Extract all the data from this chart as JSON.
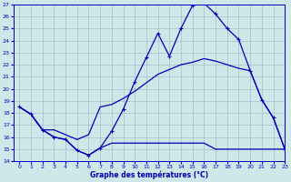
{
  "bg_color": "#cce8e8",
  "grid_color": "#aabccc",
  "line_color": "#0000bb",
  "xlabel": "Graphe des températures (°C)",
  "ylim": [
    14,
    27
  ],
  "xlim": [
    -0.5,
    23
  ],
  "yticks": [
    14,
    15,
    16,
    17,
    18,
    19,
    20,
    21,
    22,
    23,
    24,
    25,
    26,
    27
  ],
  "xticks": [
    0,
    1,
    2,
    3,
    4,
    5,
    6,
    7,
    8,
    9,
    10,
    11,
    12,
    13,
    14,
    15,
    16,
    17,
    18,
    19,
    20,
    21,
    22,
    23
  ],
  "curve_main_x": [
    0,
    1,
    2,
    3,
    4,
    5,
    6,
    7,
    8,
    9,
    10,
    11,
    12,
    13,
    14,
    15,
    16,
    17,
    18,
    19,
    20,
    21,
    22,
    23
  ],
  "curve_main_y": [
    18.5,
    17.9,
    16.6,
    16.0,
    15.8,
    14.9,
    14.5,
    15.1,
    16.5,
    18.3,
    20.6,
    22.6,
    24.6,
    22.7,
    25.0,
    26.9,
    27.1,
    26.2,
    25.0,
    24.1,
    21.5,
    19.1,
    17.6,
    15.0
  ],
  "curve_min_x": [
    0,
    1,
    2,
    3,
    4,
    5,
    6,
    7,
    8,
    9,
    10,
    11,
    12,
    13,
    14,
    15,
    16,
    17,
    18,
    19,
    20,
    21,
    22,
    23
  ],
  "curve_min_y": [
    18.5,
    17.9,
    16.6,
    16.0,
    15.8,
    14.9,
    14.5,
    15.1,
    15.5,
    15.5,
    15.5,
    15.5,
    15.5,
    15.5,
    15.5,
    15.5,
    15.5,
    15.0,
    15.0,
    15.0,
    15.0,
    15.0,
    15.0,
    15.0
  ],
  "curve_avg_x": [
    0,
    1,
    2,
    3,
    4,
    5,
    6,
    7,
    8,
    9,
    10,
    11,
    12,
    13,
    14,
    15,
    16,
    17,
    18,
    19,
    20,
    21,
    22,
    23
  ],
  "curve_avg_y": [
    18.5,
    17.9,
    16.6,
    16.6,
    16.2,
    15.8,
    16.2,
    18.5,
    18.7,
    19.2,
    19.8,
    20.5,
    21.2,
    21.6,
    22.0,
    22.2,
    22.5,
    22.3,
    22.0,
    21.7,
    21.5,
    19.1,
    17.6,
    15.0
  ]
}
